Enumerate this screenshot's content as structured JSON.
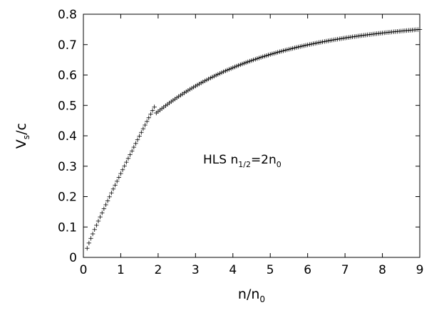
{
  "chart_data": {
    "type": "scatter",
    "marker": "plus",
    "color": "#000000",
    "grid": false,
    "xlabel": {
      "main": "n/n",
      "sub": "0"
    },
    "ylabel": {
      "main": "V",
      "sub": "s",
      "tail": "/c"
    },
    "xlim": [
      0,
      9
    ],
    "ylim": [
      0,
      0.8
    ],
    "xticks": [
      0,
      1,
      2,
      3,
      4,
      5,
      6,
      7,
      8,
      9
    ],
    "yticks": [
      0,
      0.1,
      0.2,
      0.3,
      0.4,
      0.5,
      0.6,
      0.7,
      0.8
    ],
    "annotation": {
      "prefix": "HLS  n",
      "sub1": "1/2",
      "mid": "=2n",
      "sub2": "0"
    },
    "segments": [
      {
        "x_start": 0.1,
        "x_end": 1.9,
        "x_step": 0.05,
        "y_at_start": 0.03,
        "y_at_end": 0.495
      },
      {
        "x_start": 1.95,
        "x_end": 9.0,
        "x_step": 0.05,
        "y_at_start": 0.475,
        "y_at_end": 0.75
      }
    ]
  }
}
